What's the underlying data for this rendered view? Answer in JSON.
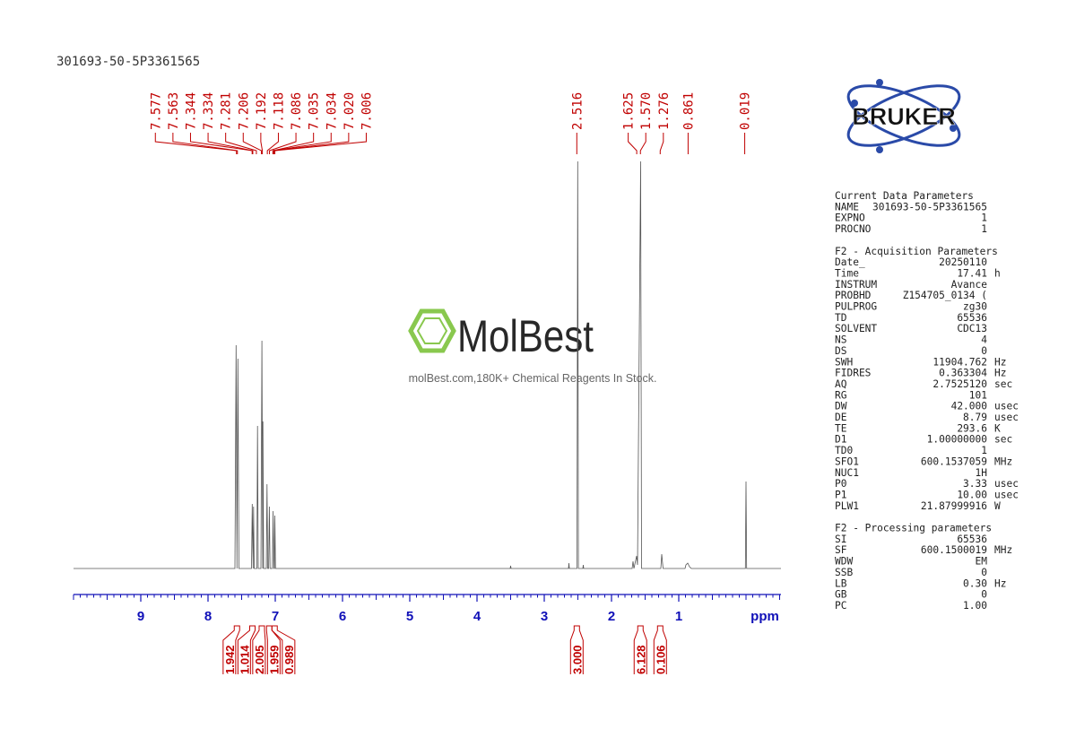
{
  "chart_data": {
    "type": "nmr",
    "title": "301693-50-5P3361565",
    "xlim": [
      10,
      -0.52
    ],
    "xticks": [
      9,
      8,
      7,
      6,
      5,
      4,
      3,
      2,
      1
    ],
    "xlabel": "ppm",
    "peaks": {
      "values": [
        7.577,
        7.563,
        7.344,
        7.334,
        7.281,
        7.206,
        7.192,
        7.118,
        7.086,
        7.035,
        7.034,
        7.02,
        7.006,
        2.516,
        1.625,
        1.57,
        1.276,
        0.861,
        0.019
      ],
      "value_labels": [
        "7.577",
        "7.563",
        "7.344",
        "7.334",
        "7.281",
        "7.206",
        "7.192",
        "7.118",
        "7.086",
        "7.035",
        "7.034",
        "7.020",
        "7.006",
        "2.516",
        "1.625",
        "1.570",
        "1.276",
        "0.861",
        "0.019"
      ]
    },
    "integrals": {
      "x": [
        7.57,
        7.34,
        7.2,
        7.09,
        7.01,
        2.516,
        1.57,
        1.276
      ],
      "values": [
        1.942,
        1.014,
        2.005,
        1.959,
        0.989,
        3,
        6.128,
        0.106
      ],
      "value_labels": [
        "1.942",
        "1.014",
        "2.005",
        "1.959",
        "0.989",
        "3.000",
        "6.128",
        "0.106"
      ]
    }
  },
  "watermark": {
    "brand": "MolBest",
    "tagline": "molBest.com,180K+ Chemical Reagents In Stock."
  },
  "logo": "BRUKER",
  "parameters": [
    {
      "heading": "Current Data Parameters",
      "rows": [
        [
          "NAME",
          "301693-50-5P3361565"
        ],
        [
          "EXPNO",
          "1"
        ],
        [
          "PROCNO",
          "1"
        ]
      ]
    },
    {
      "heading": "F2 - Acquisition Parameters",
      "rows": [
        [
          "Date_",
          "20250110"
        ],
        [
          "Time",
          "17.41",
          "h"
        ],
        [
          "INSTRUM",
          "Avance"
        ],
        [
          "PROBHD",
          "Z154705_0134 ("
        ],
        [
          "PULPROG",
          "zg30"
        ],
        [
          "TD",
          "65536"
        ],
        [
          "SOLVENT",
          "CDC13"
        ],
        [
          "NS",
          "4"
        ],
        [
          "DS",
          "0"
        ],
        [
          "SWH",
          "11904.762",
          "Hz"
        ],
        [
          "FIDRES",
          "0.363304",
          "Hz"
        ],
        [
          "AQ",
          "2.7525120",
          "sec"
        ],
        [
          "RG",
          "101"
        ],
        [
          "DW",
          "42.000",
          "usec"
        ],
        [
          "DE",
          "8.79",
          "usec"
        ],
        [
          "TE",
          "293.6",
          "K"
        ],
        [
          "D1",
          "1.00000000",
          "sec"
        ],
        [
          "TD0",
          "1"
        ],
        [
          "SFO1",
          "600.1537059",
          "MHz"
        ],
        [
          "NUC1",
          "1H"
        ],
        [
          "P0",
          "3.33",
          "usec"
        ],
        [
          "P1",
          "10.00",
          "usec"
        ],
        [
          "PLW1",
          "21.87999916",
          "W"
        ]
      ]
    },
    {
      "heading": "F2 - Processing parameters",
      "rows": [
        [
          "SI",
          "65536"
        ],
        [
          "SF",
          "600.1500019",
          "MHz"
        ],
        [
          "WDW",
          "EM"
        ],
        [
          "SSB",
          "0"
        ],
        [
          "LB",
          "0.30",
          "Hz"
        ],
        [
          "GB",
          "0"
        ],
        [
          "PC",
          "1.00"
        ]
      ]
    }
  ]
}
